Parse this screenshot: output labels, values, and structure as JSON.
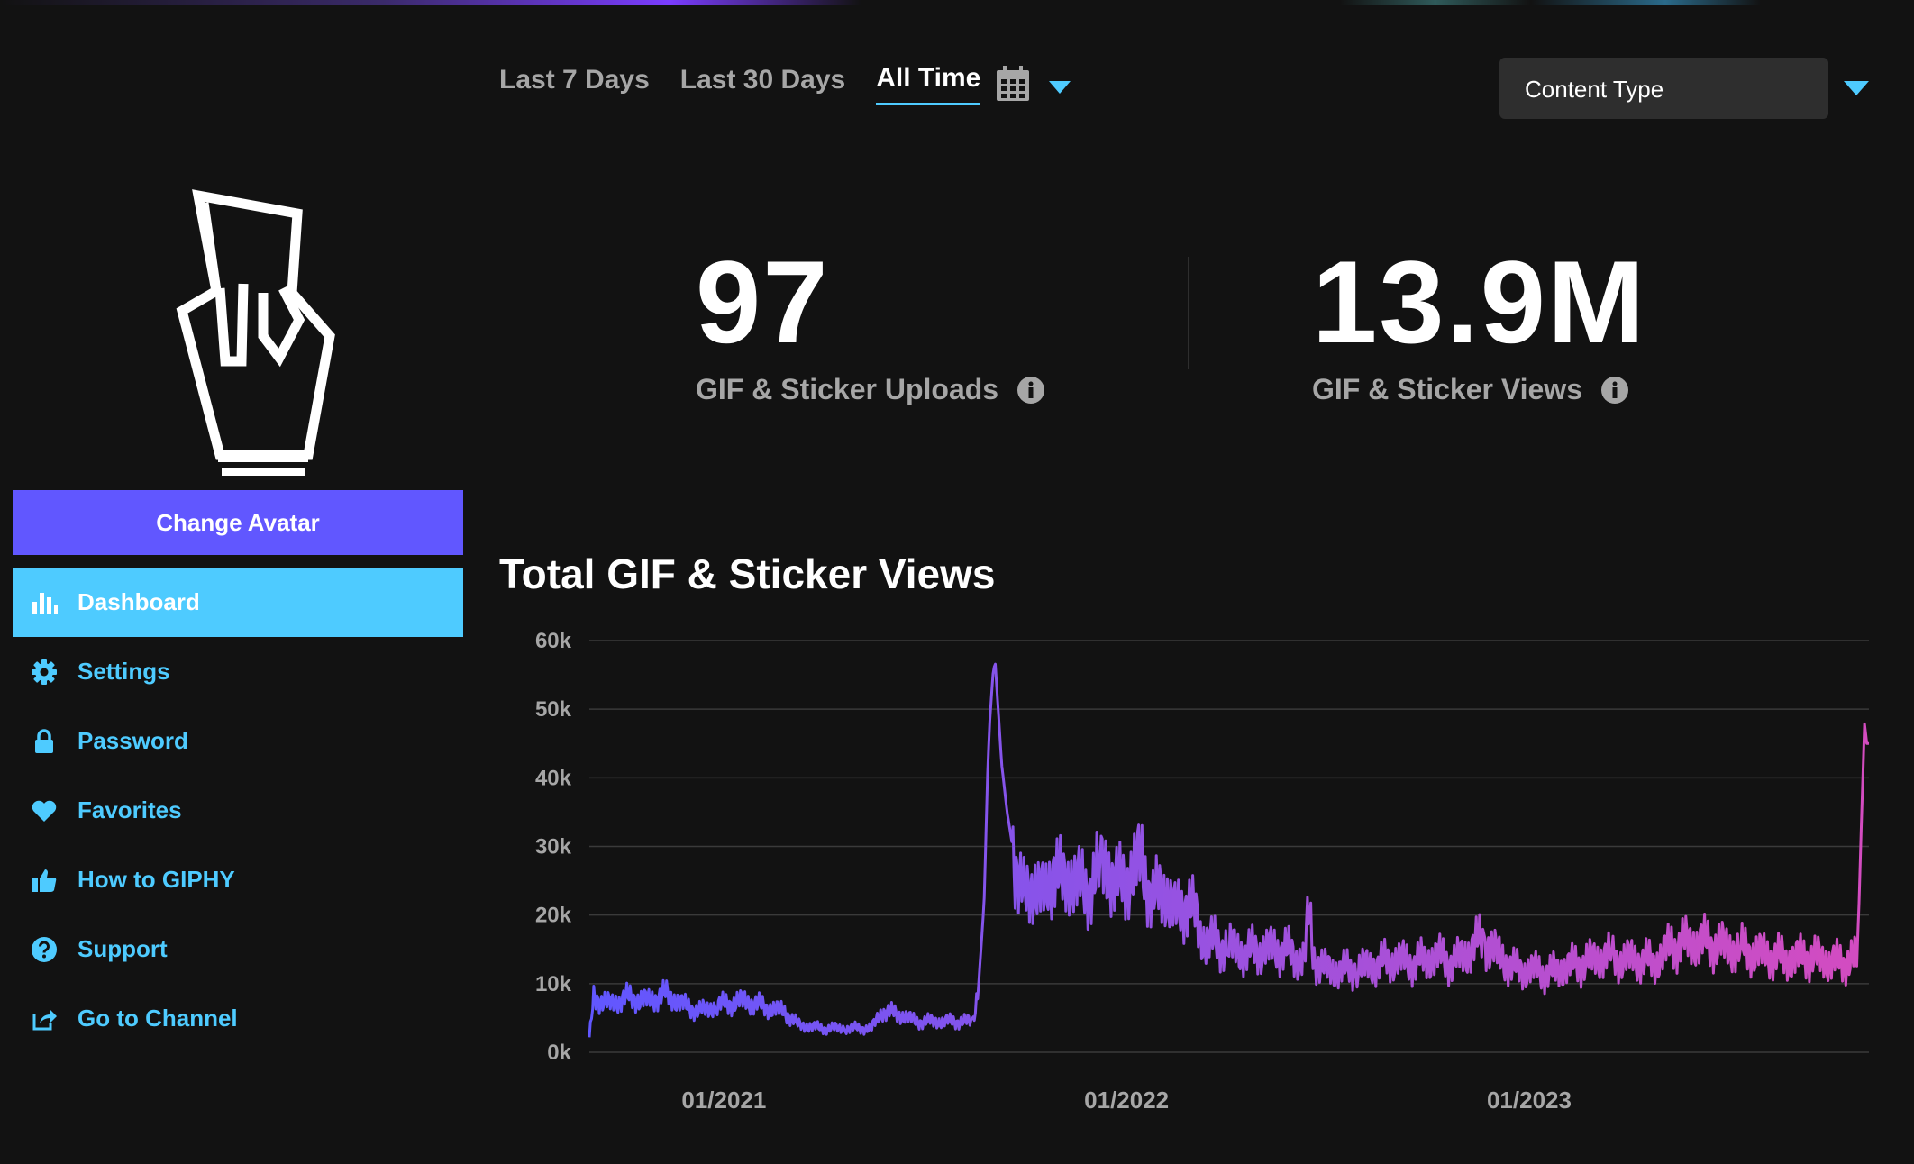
{
  "colors": {
    "accent_purple": "#6157ff",
    "accent_blue": "#4ecbff",
    "background": "#121212",
    "muted_text": "#a6a6a6"
  },
  "sidebar": {
    "change_avatar_label": "Change Avatar",
    "items": [
      {
        "label": "Dashboard",
        "icon": "bar-chart-icon",
        "active": true
      },
      {
        "label": "Settings",
        "icon": "gear-icon"
      },
      {
        "label": "Password",
        "icon": "lock-icon"
      },
      {
        "label": "Favorites",
        "icon": "heart-icon"
      },
      {
        "label": "How to GIPHY",
        "icon": "thumbs-up-icon"
      },
      {
        "label": "Support",
        "icon": "question-circle-icon"
      },
      {
        "label": "Go to Channel",
        "icon": "share-icon"
      }
    ]
  },
  "filters": {
    "tabs": [
      "Last 7 Days",
      "Last 30 Days",
      "All Time"
    ],
    "active_tab": "All Time",
    "content_type_label": "Content Type"
  },
  "stats": {
    "uploads": {
      "value": "97",
      "label": "GIF & Sticker Uploads"
    },
    "views": {
      "value": "13.9M",
      "label": "GIF & Sticker Views"
    }
  },
  "chart_title": "Total GIF & Sticker Views",
  "chart_data": {
    "type": "line",
    "title": "Total GIF & Sticker Views",
    "y_ticks": [
      "0k",
      "10k",
      "20k",
      "30k",
      "40k",
      "50k",
      "60k"
    ],
    "ylim": [
      0,
      60000
    ],
    "x_ticks": [
      "01/2021",
      "01/2022",
      "01/2023"
    ],
    "x_tick_dates": [
      "2021-01-01",
      "2022-01-01",
      "2023-01-01"
    ],
    "x_range": [
      "2020-09-01",
      "2023-11-05"
    ],
    "grid": true,
    "gradient": [
      "#6157ff",
      "#d44cc0"
    ],
    "series": [
      {
        "points": [
          [
            "2020-09-01",
            2000
          ],
          [
            "2020-09-05",
            8000
          ],
          [
            "2020-09-20",
            7000
          ],
          [
            "2020-10-05",
            8000
          ],
          [
            "2020-10-25",
            7500
          ],
          [
            "2020-11-10",
            8500
          ],
          [
            "2020-11-25",
            7000
          ],
          [
            "2020-12-10",
            6000
          ],
          [
            "2021-01-01",
            7000
          ],
          [
            "2021-01-20",
            7500
          ],
          [
            "2021-02-10",
            6500
          ],
          [
            "2021-02-25",
            6000
          ],
          [
            "2021-03-10",
            4000
          ],
          [
            "2021-04-01",
            3500
          ],
          [
            "2021-05-01",
            3500
          ],
          [
            "2021-05-15",
            3500
          ],
          [
            "2021-05-25",
            6000
          ],
          [
            "2021-06-10",
            5500
          ],
          [
            "2021-06-25",
            4500
          ],
          [
            "2021-07-15",
            4500
          ],
          [
            "2021-08-05",
            4500
          ],
          [
            "2021-08-15",
            4500
          ],
          [
            "2021-08-20",
            10000
          ],
          [
            "2021-08-25",
            22000
          ],
          [
            "2021-08-28",
            40000
          ],
          [
            "2021-08-30",
            48000
          ],
          [
            "2021-09-02",
            55000
          ],
          [
            "2021-09-04",
            57000
          ],
          [
            "2021-09-06",
            52000
          ],
          [
            "2021-09-10",
            42000
          ],
          [
            "2021-09-15",
            35000
          ],
          [
            "2021-09-20",
            30000
          ],
          [
            "2021-09-25",
            26000
          ],
          [
            "2021-10-01",
            22000
          ],
          [
            "2021-10-10",
            25000
          ],
          [
            "2021-10-20",
            22000
          ],
          [
            "2021-10-28",
            28000
          ],
          [
            "2021-11-05",
            24000
          ],
          [
            "2021-11-15",
            26000
          ],
          [
            "2021-11-25",
            23000
          ],
          [
            "2021-12-05",
            26000
          ],
          [
            "2021-12-15",
            27000
          ],
          [
            "2021-12-25",
            24000
          ],
          [
            "2022-01-05",
            26000
          ],
          [
            "2022-01-15",
            28000
          ],
          [
            "2022-01-25",
            22000
          ],
          [
            "2022-02-05",
            24000
          ],
          [
            "2022-02-15",
            20000
          ],
          [
            "2022-02-25",
            22000
          ],
          [
            "2022-03-05",
            20000
          ],
          [
            "2022-03-10",
            17000
          ],
          [
            "2022-03-20",
            16000
          ],
          [
            "2022-04-01",
            15500
          ],
          [
            "2022-04-20",
            14500
          ],
          [
            "2022-05-05",
            15000
          ],
          [
            "2022-05-25",
            15000
          ],
          [
            "2022-06-05",
            13500
          ],
          [
            "2022-06-12",
            14000
          ],
          [
            "2022-06-16",
            20500
          ],
          [
            "2022-06-20",
            14000
          ],
          [
            "2022-07-01",
            12000
          ],
          [
            "2022-07-20",
            12000
          ],
          [
            "2022-08-10",
            12500
          ],
          [
            "2022-09-01",
            13500
          ],
          [
            "2022-09-20",
            13000
          ],
          [
            "2022-10-10",
            14000
          ],
          [
            "2022-10-25",
            13000
          ],
          [
            "2022-11-10",
            15000
          ],
          [
            "2022-11-20",
            16500
          ],
          [
            "2022-12-05",
            14000
          ],
          [
            "2022-12-20",
            12000
          ],
          [
            "2023-01-05",
            12000
          ],
          [
            "2023-01-20",
            11500
          ],
          [
            "2023-02-05",
            12500
          ],
          [
            "2023-02-20",
            13000
          ],
          [
            "2023-03-10",
            14000
          ],
          [
            "2023-03-25",
            13500
          ],
          [
            "2023-04-10",
            13500
          ],
          [
            "2023-04-25",
            13000
          ],
          [
            "2023-05-10",
            15500
          ],
          [
            "2023-05-25",
            16000
          ],
          [
            "2023-06-10",
            16000
          ],
          [
            "2023-06-25",
            15500
          ],
          [
            "2023-07-10",
            15000
          ],
          [
            "2023-07-25",
            14500
          ],
          [
            "2023-08-10",
            14000
          ],
          [
            "2023-08-25",
            13500
          ],
          [
            "2023-09-10",
            14000
          ],
          [
            "2023-09-25",
            13500
          ],
          [
            "2023-10-10",
            13000
          ],
          [
            "2023-10-20",
            13500
          ],
          [
            "2023-10-26",
            14000
          ],
          [
            "2023-10-28",
            22000
          ],
          [
            "2023-10-31",
            38000
          ],
          [
            "2023-11-02",
            48000
          ],
          [
            "2023-11-04",
            45000
          ]
        ]
      }
    ]
  }
}
